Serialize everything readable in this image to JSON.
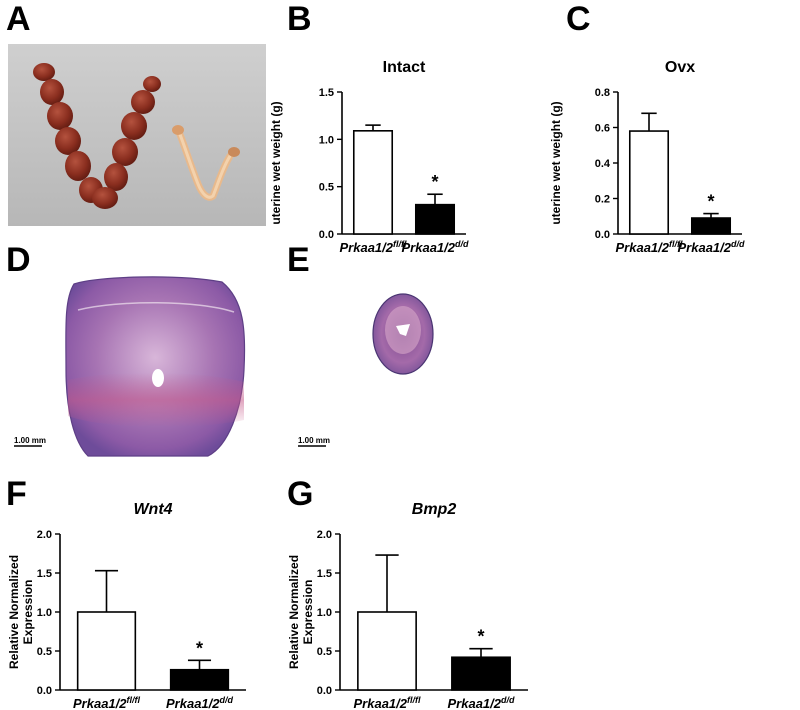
{
  "panels": {
    "a": "A",
    "b": "B",
    "c": "C",
    "d": "D",
    "e": "E",
    "f": "F",
    "g": "G"
  },
  "scale_bar_d": "1.00 mm",
  "scale_bar_e": "1.00 mm",
  "chart_data": [
    {
      "id": "B",
      "type": "bar",
      "title": "Intact",
      "title_italic": false,
      "ylabel": "uterine wet weight (g)",
      "ylim": [
        0,
        1.5
      ],
      "yticks": [
        "0.0",
        "0.5",
        "1.0",
        "1.5"
      ],
      "ytick_values": [
        0,
        0.5,
        1.0,
        1.5
      ],
      "categories": [
        {
          "base": "Prkaa1/2",
          "sup": "fl/fl"
        },
        {
          "base": "Prkaa1/2",
          "sup": "d/d"
        }
      ],
      "values": [
        1.09,
        0.31
      ],
      "errors": [
        0.06,
        0.11
      ],
      "fills": [
        "#ffffff",
        "#000000"
      ],
      "annotations": [
        "",
        "*"
      ]
    },
    {
      "id": "C",
      "type": "bar",
      "title": "Ovx",
      "title_italic": false,
      "ylabel": "uterine wet weight (g)",
      "ylim": [
        0,
        0.8
      ],
      "yticks": [
        "0.0",
        "0.2",
        "0.4",
        "0.6",
        "0.8"
      ],
      "ytick_values": [
        0,
        0.2,
        0.4,
        0.6,
        0.8
      ],
      "categories": [
        {
          "base": "Prkaa1/2",
          "sup": "fl/fl"
        },
        {
          "base": "Prkaa1/2",
          "sup": "d/d"
        }
      ],
      "values": [
        0.58,
        0.09
      ],
      "errors": [
        0.1,
        0.025
      ],
      "fills": [
        "#ffffff",
        "#000000"
      ],
      "annotations": [
        "",
        "*"
      ]
    },
    {
      "id": "F",
      "type": "bar",
      "title": "Wnt4",
      "title_italic": true,
      "ylabel": "Relative Normalized Expression",
      "ylabel_lines": [
        "Relative Normalized",
        "Expression"
      ],
      "ylim": [
        0,
        2.0
      ],
      "yticks": [
        "0.0",
        "0.5",
        "1.0",
        "1.5",
        "2.0"
      ],
      "ytick_values": [
        0,
        0.5,
        1.0,
        1.5,
        2.0
      ],
      "categories": [
        {
          "base": "Prkaa1/2",
          "sup": "fl/fl"
        },
        {
          "base": "Prkaa1/2",
          "sup": "d/d"
        }
      ],
      "values": [
        1.0,
        0.26
      ],
      "errors": [
        0.53,
        0.12
      ],
      "fills": [
        "#ffffff",
        "#000000"
      ],
      "annotations": [
        "",
        "*"
      ]
    },
    {
      "id": "G",
      "type": "bar",
      "title": "Bmp2",
      "title_italic": true,
      "ylabel": "Relative Normalized Expression",
      "ylabel_lines": [
        "Relative Normalized",
        "Expression"
      ],
      "ylim": [
        0,
        2.0
      ],
      "yticks": [
        "0.0",
        "0.5",
        "1.0",
        "1.5",
        "2.0"
      ],
      "ytick_values": [
        0,
        0.5,
        1.0,
        1.5,
        2.0
      ],
      "categories": [
        {
          "base": "Prkaa1/2",
          "sup": "fl/fl"
        },
        {
          "base": "Prkaa1/2",
          "sup": "d/d"
        }
      ],
      "values": [
        1.0,
        0.42
      ],
      "errors": [
        0.73,
        0.11
      ],
      "fills": [
        "#ffffff",
        "#000000"
      ],
      "annotations": [
        "",
        "*"
      ]
    }
  ]
}
